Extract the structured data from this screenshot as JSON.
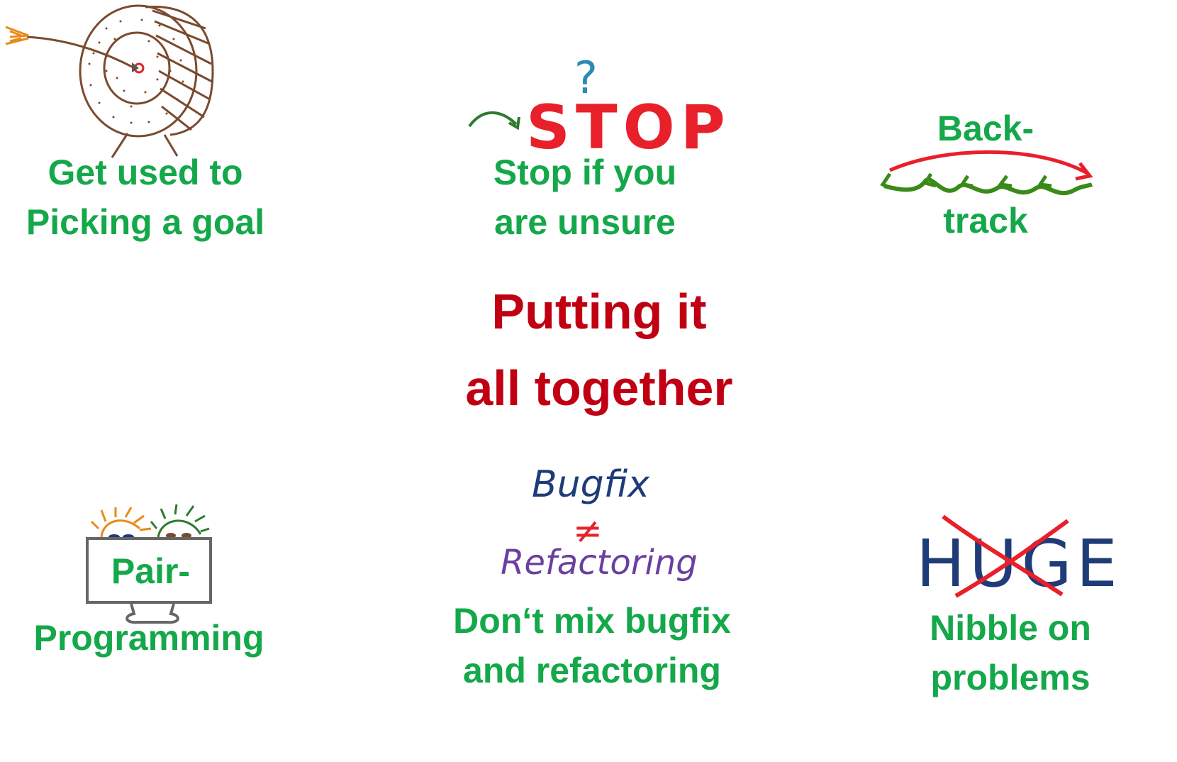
{
  "title": {
    "line1": "Putting it",
    "line2": "all together"
  },
  "items": {
    "goal": {
      "line1": "Get used to",
      "line2": "Picking a goal",
      "icon": "archery-target-icon"
    },
    "stop": {
      "sign": "STOP",
      "question": "?",
      "line1": "Stop if you",
      "line2": "are unsure",
      "icon": "stop-sign-icon"
    },
    "backtrack": {
      "line1": "Back-",
      "line2": "track",
      "icon": "backtrack-arrow-icon"
    },
    "pair": {
      "line1": "Pair-",
      "line2": "Programming",
      "icon": "pair-programming-monitor-icon"
    },
    "bugfix": {
      "top": "Bugfix",
      "neq": "≠",
      "bottom": "Refactoring",
      "line1": "Don‘t mix bugfix",
      "line2": "and refactoring"
    },
    "nibble": {
      "word": "HUGE",
      "line1": "Nibble on",
      "line2": "problems",
      "icon": "cross-out-icon"
    }
  },
  "colors": {
    "green": "#14a84a",
    "red_title": "#c00012",
    "stop_red": "#e8202a",
    "navy": "#1f3c78",
    "purple": "#6a3fa0",
    "brown": "#7a4a2e",
    "orange": "#e88a1a",
    "teal": "#2a8cb4",
    "dark_green": "#2e7a2e"
  }
}
